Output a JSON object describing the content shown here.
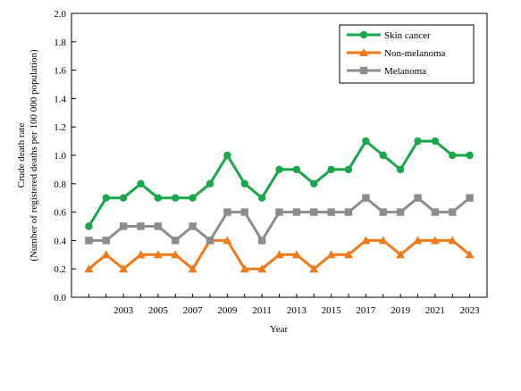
{
  "chart_data": {
    "type": "line",
    "title": "",
    "xlabel": "Year",
    "ylabel_line1": "Crude death rate",
    "ylabel_line2": "(Number of registered deaths per 100 000 population)",
    "x": [
      2001,
      2002,
      2003,
      2004,
      2005,
      2006,
      2007,
      2008,
      2009,
      2010,
      2011,
      2012,
      2013,
      2014,
      2015,
      2016,
      2017,
      2018,
      2019,
      2020,
      2021,
      2022,
      2023
    ],
    "xticks": [
      "2003",
      "2005",
      "2007",
      "2009",
      "2011",
      "2013",
      "2015",
      "2017",
      "2019",
      "2021",
      "2023"
    ],
    "yticks": [
      "0.0",
      "0.2",
      "0.4",
      "0.6",
      "0.8",
      "1.0",
      "1.2",
      "1.4",
      "1.6",
      "1.8",
      "2.0"
    ],
    "ylim": [
      0,
      2.0
    ],
    "xlim": [
      2000,
      2024
    ],
    "grid": false,
    "legend_position": "top-right",
    "series": [
      {
        "name": "Skin cancer",
        "color": "#1aa64b",
        "marker": "circle",
        "values": [
          0.5,
          0.7,
          0.7,
          0.8,
          0.7,
          0.7,
          0.7,
          0.8,
          1.0,
          0.8,
          0.7,
          0.9,
          0.9,
          0.8,
          0.9,
          0.9,
          1.1,
          1.0,
          0.9,
          1.1,
          1.1,
          1.0,
          1.0
        ]
      },
      {
        "name": "Non-melanoma",
        "color": "#f07a17",
        "marker": "triangle",
        "values": [
          0.2,
          0.3,
          0.2,
          0.3,
          0.3,
          0.3,
          0.2,
          0.4,
          0.4,
          0.2,
          0.2,
          0.3,
          0.3,
          0.2,
          0.3,
          0.3,
          0.4,
          0.4,
          0.3,
          0.4,
          0.4,
          0.4,
          0.3
        ]
      },
      {
        "name": "Melanoma",
        "color": "#8c8c8c",
        "marker": "square",
        "values": [
          0.4,
          0.4,
          0.5,
          0.5,
          0.5,
          0.4,
          0.5,
          0.4,
          0.6,
          0.6,
          0.4,
          0.6,
          0.6,
          0.6,
          0.6,
          0.6,
          0.7,
          0.6,
          0.6,
          0.7,
          0.6,
          0.6,
          0.7
        ]
      }
    ]
  }
}
